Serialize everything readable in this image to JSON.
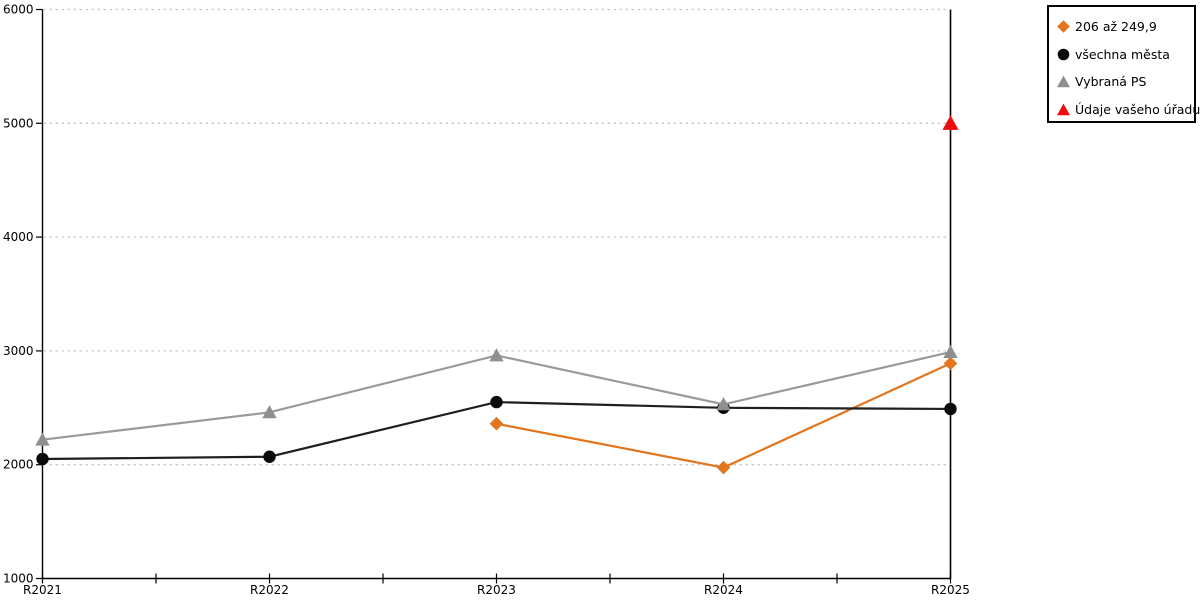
{
  "chart_data": {
    "type": "line",
    "title": "",
    "xlabel": "",
    "ylabel": "",
    "categories": [
      "R2021",
      "R2022",
      "R2023",
      "R2024",
      "R2025"
    ],
    "series": [
      {
        "name": "206 až 249,9",
        "marker": "diamond",
        "line_color": "#e2751d",
        "marker_color": "#e2751d",
        "values": [
          null,
          null,
          2360,
          1975,
          2890
        ]
      },
      {
        "name": "všechna města",
        "marker": "circle",
        "line_color": "#1f1f1f",
        "marker_color": "#0a0a0a",
        "values": [
          2050,
          2070,
          2550,
          2500,
          2490
        ]
      },
      {
        "name": "Vybraná PS",
        "marker": "triangle",
        "line_color": "#9a9a9a",
        "marker_color": "#8f8f8f",
        "values": [
          2220,
          2460,
          2960,
          2530,
          2990
        ]
      },
      {
        "name": "Údaje vašeho úřadu",
        "marker": "triangle",
        "line_color": "#ee0c0c",
        "marker_color": "#ee0c0c",
        "values": [
          null,
          null,
          null,
          null,
          5000
        ]
      }
    ],
    "ylim": [
      1000,
      6000
    ],
    "yticks": [
      1000,
      2000,
      3000,
      4000,
      5000,
      6000
    ],
    "grid": "horizontal dotted lines at each ytick above 1000",
    "legend_position": "top-right",
    "notes": "right vertical rule at R2025; minor x ticks midway between year ticks"
  },
  "colors": {
    "background": "#ffffff",
    "axis": "#000000",
    "gridline": "#c9c9c9",
    "legend_border": "#000000"
  }
}
